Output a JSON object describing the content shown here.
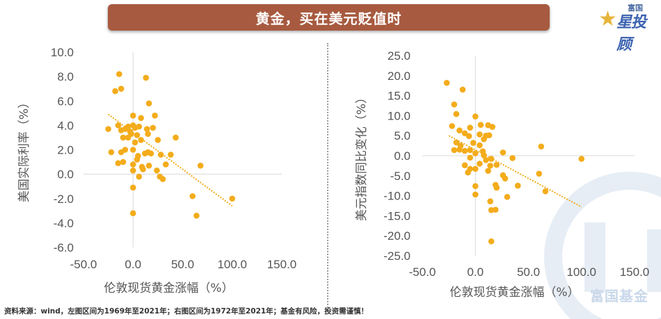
{
  "header": {
    "title": "黄金，买在美元贬值时"
  },
  "logo": {
    "small": "富国",
    "big": "星投顾"
  },
  "watermark": "富国基金",
  "footer": "资料来源：wind，左图区间为1969年至2021年；右图区间为1972年至2021年；基金有风险，投资需谨慎！",
  "colors": {
    "title_bg": "#a75a3f",
    "point": "#f3ac1b",
    "trend": "#f3ac1b",
    "axis": "#d9d9d9",
    "text": "#555555"
  },
  "chart_data": [
    {
      "type": "scatter",
      "xlabel": "伦敦现货黄金涨幅（%）",
      "ylabel": "美国实际利率（%）",
      "xlim": [
        -50,
        150
      ],
      "ylim": [
        -6,
        10
      ],
      "x_ticks": [
        "-50.0",
        "0.0",
        "50.0",
        "100.0",
        "150.0"
      ],
      "y_ticks": [
        "10.0",
        "8.0",
        "6.0",
        "4.0",
        "2.0",
        "0.0",
        "-2.0",
        "-4.0",
        "-6.0"
      ],
      "trendline": {
        "x": [
          -25,
          100
        ],
        "y": [
          4.9,
          -2.6
        ]
      },
      "points": [
        [
          -14,
          8.2
        ],
        [
          -18,
          6.8
        ],
        [
          -12,
          7.0
        ],
        [
          13,
          7.9
        ],
        [
          16,
          5.8
        ],
        [
          22,
          4.8
        ],
        [
          0,
          4.8
        ],
        [
          -25,
          3.7
        ],
        [
          -15,
          4.0
        ],
        [
          -12,
          3.6
        ],
        [
          -8,
          3.7
        ],
        [
          -5,
          3.9
        ],
        [
          -3,
          3.5
        ],
        [
          2,
          3.8
        ],
        [
          0,
          4.0
        ],
        [
          4,
          3.2
        ],
        [
          6,
          3.9
        ],
        [
          -2,
          3.3
        ],
        [
          8,
          4.6
        ],
        [
          14,
          3.7
        ],
        [
          20,
          3.8
        ],
        [
          -10,
          3.0
        ],
        [
          -5,
          3.0
        ],
        [
          2,
          2.6
        ],
        [
          8,
          2.8
        ],
        [
          15,
          3.3
        ],
        [
          25,
          2.8
        ],
        [
          43,
          3.0
        ],
        [
          -22,
          1.8
        ],
        [
          -12,
          1.8
        ],
        [
          -8,
          2.0
        ],
        [
          0,
          2.0
        ],
        [
          5,
          1.5
        ],
        [
          12,
          1.7
        ],
        [
          15,
          1.8
        ],
        [
          18,
          1.7
        ],
        [
          28,
          1.6
        ],
        [
          38,
          1.6
        ],
        [
          -15,
          0.9
        ],
        [
          -10,
          1.0
        ],
        [
          0,
          0.8
        ],
        [
          4,
          1.2
        ],
        [
          9,
          0.6
        ],
        [
          10,
          0.4
        ],
        [
          16,
          0.7
        ],
        [
          24,
          0.3
        ],
        [
          33,
          0.8
        ],
        [
          0,
          0.3
        ],
        [
          6,
          -0.2
        ],
        [
          27,
          -0.2
        ],
        [
          30,
          -0.4
        ],
        [
          68,
          0.7
        ],
        [
          0,
          -1.1
        ],
        [
          60,
          -1.8
        ],
        [
          100,
          -2.0
        ],
        [
          0,
          -3.2
        ],
        [
          64,
          -3.4
        ]
      ]
    },
    {
      "type": "scatter",
      "xlabel": "伦敦现货黄金涨幅（%）",
      "ylabel": "美元指数同比变化（%）",
      "xlim": [
        -50,
        150
      ],
      "ylim": [
        -25,
        25
      ],
      "x_ticks": [
        "-50.0",
        "0.0",
        "50.0",
        "100.0",
        "150.0"
      ],
      "y_ticks": [
        "25.0",
        "20.0",
        "15.0",
        "10.0",
        "5.0",
        "0.0",
        "-5.0",
        "-10.0",
        "-15.0",
        "-20.0",
        "-25.0"
      ],
      "trendline": {
        "x": [
          -25,
          100
        ],
        "y": [
          5.0,
          -12.8
        ]
      },
      "points": [
        [
          -27,
          18.2
        ],
        [
          -12,
          16.5
        ],
        [
          -20,
          12.8
        ],
        [
          -18,
          10.4
        ],
        [
          -22,
          7.4
        ],
        [
          -15,
          6.3
        ],
        [
          -5,
          7.0
        ],
        [
          0,
          9.8
        ],
        [
          5,
          7.7
        ],
        [
          12,
          7.6
        ],
        [
          16,
          7.2
        ],
        [
          -10,
          5.6
        ],
        [
          -6,
          4.9
        ],
        [
          4,
          5.3
        ],
        [
          10,
          5.0
        ],
        [
          13,
          5.1
        ],
        [
          -18,
          3.3
        ],
        [
          -14,
          2.5
        ],
        [
          -2,
          3.2
        ],
        [
          4,
          2.6
        ],
        [
          8,
          4.1
        ],
        [
          -20,
          1.4
        ],
        [
          -15,
          1.5
        ],
        [
          -10,
          1.2
        ],
        [
          -5,
          1.4
        ],
        [
          0,
          0.6
        ],
        [
          7,
          1.1
        ],
        [
          8,
          0.1
        ],
        [
          26,
          0.8
        ],
        [
          -5,
          -0.5
        ],
        [
          10,
          -1.1
        ],
        [
          15,
          -0.8
        ],
        [
          35,
          -0.6
        ],
        [
          -10,
          -2.4
        ],
        [
          -5,
          -3.3
        ],
        [
          0,
          -3.3
        ],
        [
          4,
          -2.0
        ],
        [
          14,
          -2.5
        ],
        [
          20,
          -2.3
        ],
        [
          -7,
          -4.2
        ],
        [
          12,
          -3.8
        ],
        [
          26,
          -4.9
        ],
        [
          28,
          -5.7
        ],
        [
          60,
          -4.5
        ],
        [
          0,
          -7.6
        ],
        [
          19,
          -7.3
        ],
        [
          40,
          -7.5
        ],
        [
          62,
          2.3
        ],
        [
          100,
          -0.8
        ],
        [
          0,
          -9.7
        ],
        [
          20,
          -8.0
        ],
        [
          66,
          -8.9
        ],
        [
          14,
          -11.4
        ],
        [
          30,
          -10.3
        ],
        [
          15,
          -13.6
        ],
        [
          19,
          -13.5
        ],
        [
          15,
          -21.4
        ]
      ]
    }
  ]
}
